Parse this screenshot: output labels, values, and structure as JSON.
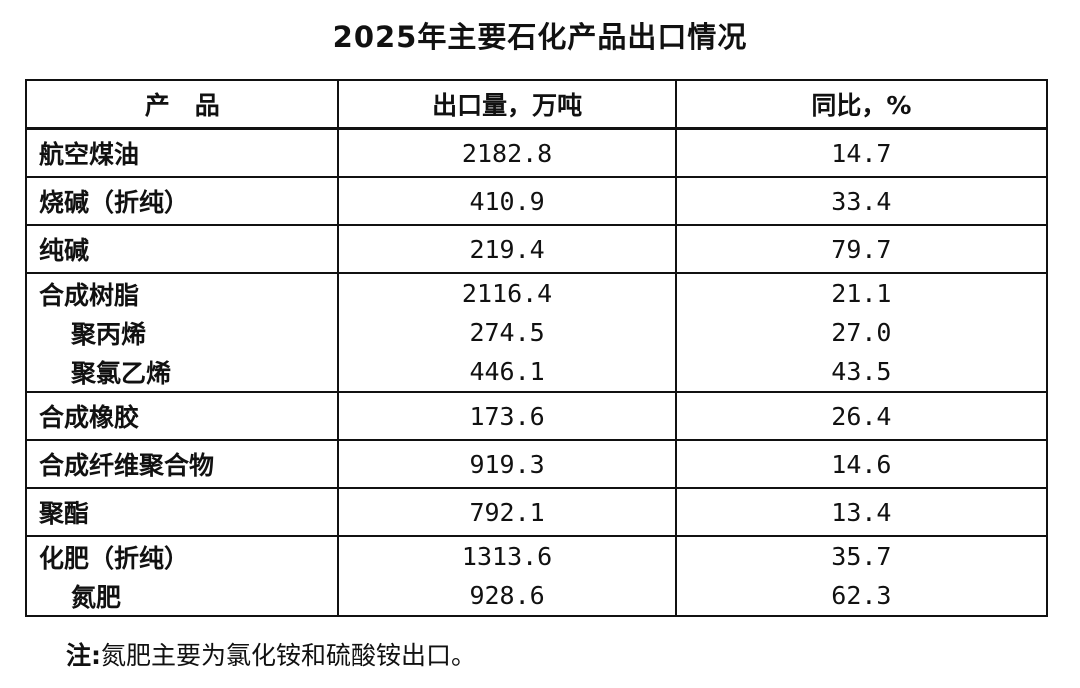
{
  "title": "2025年主要石化产品出口情况",
  "table": {
    "headers": [
      "产　品",
      "出口量，万吨",
      "同比，%"
    ],
    "groups": [
      {
        "rows": [
          {
            "name": "航空煤油",
            "volume": "2182.8",
            "yoy": "14.7"
          }
        ]
      },
      {
        "rows": [
          {
            "name": "烧碱（折纯）",
            "volume": "410.9",
            "yoy": "33.4"
          }
        ]
      },
      {
        "rows": [
          {
            "name": "纯碱",
            "volume": "219.4",
            "yoy": "79.7"
          }
        ]
      },
      {
        "rows": [
          {
            "name": "合成树脂",
            "volume": "2116.4",
            "yoy": "21.1"
          },
          {
            "name": "聚丙烯",
            "volume": "274.5",
            "yoy": "27.0"
          },
          {
            "name": "聚氯乙烯",
            "volume": "446.1",
            "yoy": "43.5"
          }
        ]
      },
      {
        "rows": [
          {
            "name": "合成橡胶",
            "volume": "173.6",
            "yoy": "26.4"
          }
        ]
      },
      {
        "rows": [
          {
            "name": "合成纤维聚合物",
            "volume": "919.3",
            "yoy": "14.6"
          }
        ]
      },
      {
        "rows": [
          {
            "name": "聚酯",
            "volume": "792.1",
            "yoy": "13.4"
          }
        ]
      },
      {
        "rows": [
          {
            "name": "化肥（折纯）",
            "volume": "1313.6",
            "yoy": "35.7"
          },
          {
            "name": "氮肥",
            "volume": "928.6",
            "yoy": "62.3"
          }
        ]
      }
    ]
  },
  "note": {
    "label": "注:",
    "text": "氮肥主要为氯化铵和硫酸铵出口。"
  }
}
